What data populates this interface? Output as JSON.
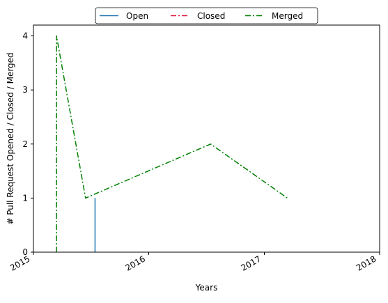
{
  "chart_data": {
    "type": "line",
    "title": "",
    "xlabel": "Years",
    "ylabel": "# Pull Request Opened / Closed / Merged",
    "xlim": [
      "2015-01-01",
      "2018-01-01"
    ],
    "ylim": [
      0,
      4.2
    ],
    "x_ticks": [
      "2015",
      "2016",
      "2017",
      "2018"
    ],
    "y_ticks": [
      0,
      1,
      2,
      3,
      4
    ],
    "grid": false,
    "legend": {
      "position": "top-center",
      "columns": 3
    },
    "series": [
      {
        "name": "Open",
        "color": "#1f77b4",
        "linestyle": "solid",
        "points": [
          {
            "x": "2015-07-15",
            "y": 0
          },
          {
            "x": "2015-07-15",
            "y": 1
          }
        ]
      },
      {
        "name": "Closed",
        "color": "#dc143c",
        "linestyle": "dashdot",
        "points": []
      },
      {
        "name": "Merged",
        "color": "#008000",
        "linestyle": "dashdot",
        "points": [
          {
            "x": "2015-03-15",
            "y": 0
          },
          {
            "x": "2015-03-15",
            "y": 4
          },
          {
            "x": "2015-06-15",
            "y": 1
          },
          {
            "x": "2016-07-15",
            "y": 2
          },
          {
            "x": "2017-03-15",
            "y": 1
          }
        ]
      }
    ]
  }
}
